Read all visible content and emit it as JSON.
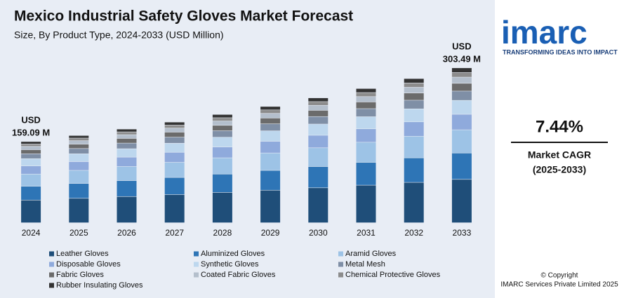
{
  "chart_data": {
    "type": "stacked_bar",
    "title": "Mexico Industrial Safety Gloves Market Forecast",
    "subtitle": "Size, By Product Type, 2024-2033 (USD Million)",
    "categories": [
      "2024",
      "2025",
      "2026",
      "2027",
      "2028",
      "2029",
      "2030",
      "2031",
      "2032",
      "2033"
    ],
    "ylim": [
      0,
      320
    ],
    "annotations": [
      [
        "USD",
        "159.09 M"
      ],
      [
        "USD",
        "303.49 M"
      ]
    ],
    "series": [
      {
        "name": "Leather Gloves",
        "color": "#1f4e79",
        "values": [
          44.5,
          47.9,
          51.4,
          55.2,
          59.4,
          63.8,
          68.5,
          73.6,
          79.1,
          85.0
        ]
      },
      {
        "name": "Aluminized Gloves",
        "color": "#2e75b6",
        "values": [
          27.0,
          29.1,
          31.2,
          33.5,
          36.0,
          38.7,
          41.6,
          44.7,
          48.0,
          51.6
        ]
      },
      {
        "name": "Aramid Gloves",
        "color": "#9dc3e6",
        "values": [
          23.9,
          25.6,
          27.5,
          29.6,
          31.8,
          34.2,
          36.7,
          39.4,
          42.4,
          45.5
        ]
      },
      {
        "name": "Disposable Gloves",
        "color": "#8faadc",
        "values": [
          15.9,
          17.1,
          18.4,
          19.7,
          21.2,
          22.8,
          24.5,
          26.3,
          28.2,
          30.3
        ]
      },
      {
        "name": "Synthetic Gloves",
        "color": "#bdd7ee",
        "values": [
          14.3,
          15.4,
          16.5,
          17.8,
          19.1,
          20.5,
          22.0,
          23.7,
          25.4,
          27.3
        ]
      },
      {
        "name": "Metal Mesh",
        "color": "#7f8fa6",
        "values": [
          9.5,
          10.3,
          11.0,
          11.8,
          12.7,
          13.7,
          14.7,
          15.8,
          16.9,
          18.2
        ]
      },
      {
        "name": "Fabric Gloves",
        "color": "#6b6b6b",
        "values": [
          8.0,
          8.5,
          9.2,
          9.9,
          10.6,
          11.4,
          12.2,
          13.1,
          14.1,
          15.2
        ]
      },
      {
        "name": "Coated Fabric Gloves",
        "color": "#b4bfcc",
        "values": [
          6.4,
          6.8,
          7.3,
          7.9,
          8.5,
          9.1,
          9.8,
          10.5,
          11.3,
          12.1
        ]
      },
      {
        "name": "Chemical Protective Gloves",
        "color": "#8c8c8c",
        "values": [
          4.8,
          5.1,
          5.5,
          5.9,
          6.4,
          6.8,
          7.3,
          7.9,
          8.5,
          9.1
        ]
      },
      {
        "name": "Rubber Insulating Gloves",
        "color": "#333333",
        "values": [
          4.8,
          5.1,
          5.5,
          5.9,
          6.4,
          6.8,
          7.3,
          7.9,
          8.5,
          9.1
        ]
      }
    ]
  },
  "brand": {
    "logo": "imarc",
    "tagline": "TRANSFORMING IDEAS INTO IMPACT",
    "cagr": "7.44%",
    "cagr_label": "Market CAGR",
    "cagr_period": "(2025-2033)",
    "copyright": "© Copyright",
    "company": "IMARC Services Private Limited 2025"
  }
}
